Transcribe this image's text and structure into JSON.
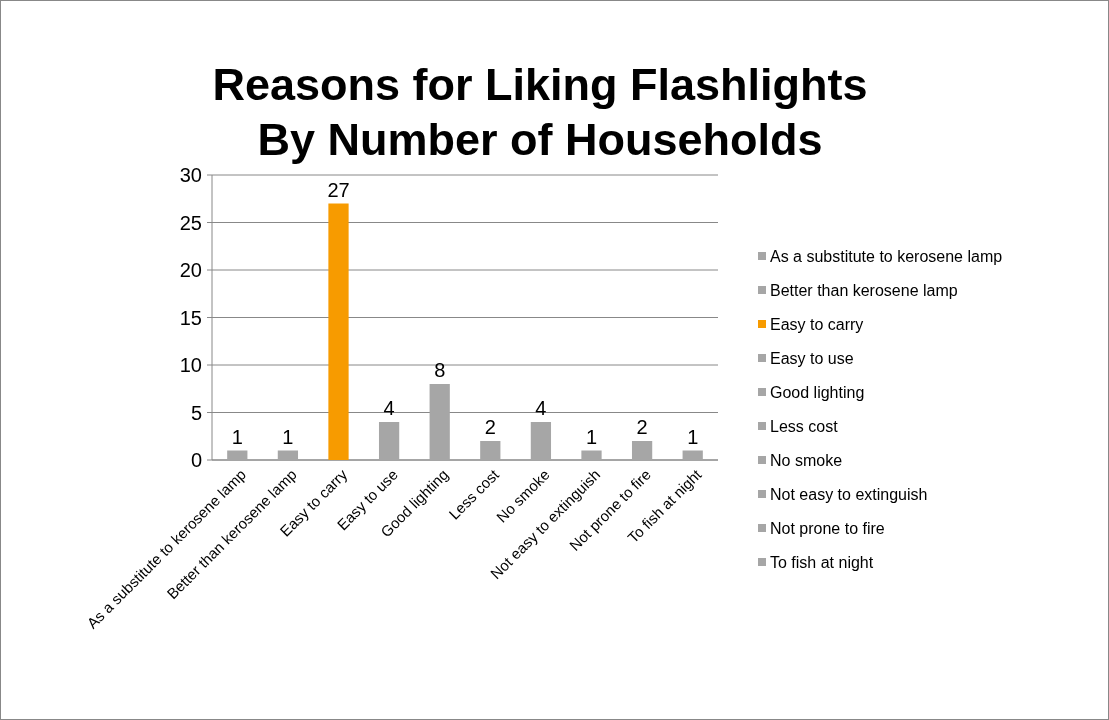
{
  "chart_data": {
    "type": "bar",
    "title": "Reasons for Liking Flashlights By Number of Households",
    "categories": [
      "As a substitute to kerosene lamp",
      "Better than kerosene lamp",
      "Easy to carry",
      "Easy to use",
      "Good lighting",
      "Less cost",
      "No smoke",
      "Not easy to extinguish",
      "Not prone to fire",
      "To fish at night"
    ],
    "series": [
      {
        "name": "As a substitute to kerosene lamp",
        "color": "#a6a6a6",
        "values": [
          1,
          null,
          null,
          null,
          null,
          null,
          null,
          null,
          null,
          null
        ]
      },
      {
        "name": "Better than kerosene lamp",
        "color": "#a6a6a6",
        "values": [
          null,
          1,
          null,
          null,
          null,
          null,
          null,
          null,
          null,
          null
        ]
      },
      {
        "name": "Easy to carry",
        "color": "#f79b00",
        "values": [
          null,
          null,
          27,
          null,
          null,
          null,
          null,
          null,
          null,
          null
        ]
      },
      {
        "name": "Easy to use",
        "color": "#a6a6a6",
        "values": [
          null,
          null,
          null,
          4,
          null,
          null,
          null,
          null,
          null,
          null
        ]
      },
      {
        "name": "Good lighting",
        "color": "#a6a6a6",
        "values": [
          null,
          null,
          null,
          null,
          8,
          null,
          null,
          null,
          null,
          null
        ]
      },
      {
        "name": "Less cost",
        "color": "#a6a6a6",
        "values": [
          null,
          null,
          null,
          null,
          null,
          2,
          null,
          null,
          null,
          null
        ]
      },
      {
        "name": "No smoke",
        "color": "#a6a6a6",
        "values": [
          null,
          null,
          null,
          null,
          null,
          null,
          4,
          null,
          null,
          null
        ]
      },
      {
        "name": "Not easy to extinguish",
        "color": "#a6a6a6",
        "values": [
          null,
          null,
          null,
          null,
          null,
          null,
          null,
          1,
          null,
          null
        ]
      },
      {
        "name": "Not prone to fire",
        "color": "#a6a6a6",
        "values": [
          null,
          null,
          null,
          null,
          null,
          null,
          null,
          null,
          2,
          null
        ]
      },
      {
        "name": "To fish at night",
        "color": "#a6a6a6",
        "values": [
          null,
          null,
          null,
          null,
          null,
          null,
          null,
          null,
          null,
          1
        ]
      }
    ],
    "ylim": [
      0,
      30
    ],
    "yticks": [
      0,
      5,
      10,
      15,
      20,
      25,
      30
    ],
    "grid": "y",
    "data_labels": true,
    "legend": "right"
  }
}
